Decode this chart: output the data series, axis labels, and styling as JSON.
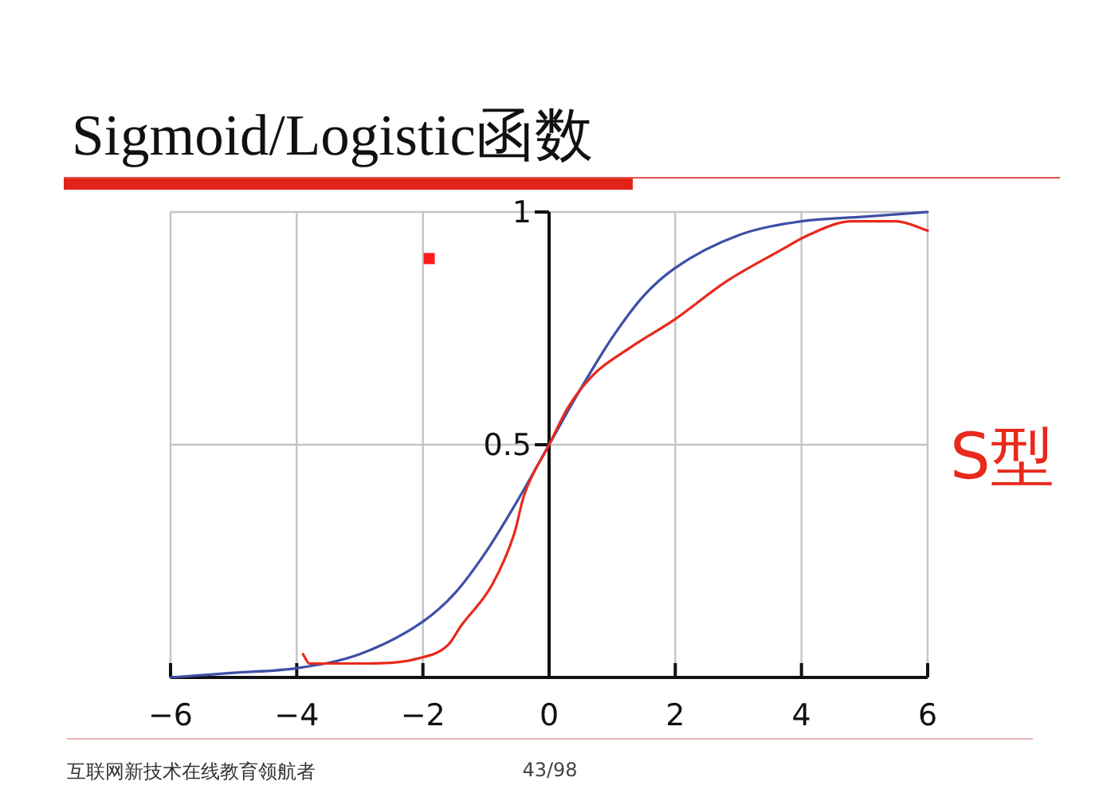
{
  "chart_data": {
    "type": "line",
    "title": "Sigmoid/Logistic函数",
    "x": [
      -6,
      -5,
      -4,
      -3,
      -2,
      -1.5,
      -1,
      -0.5,
      0,
      0.5,
      1,
      1.5,
      2,
      3,
      4,
      5,
      6
    ],
    "series": [
      {
        "color": "#3f4fa6",
        "values": [
          0,
          0.01,
          0.02,
          0.05,
          0.12,
          0.18,
          0.27,
          0.38,
          0.5,
          0.62,
          0.73,
          0.82,
          0.88,
          0.95,
          0.98,
          0.99,
          1
        ]
      },
      {
        "type": "line",
        "color": "#e8291c",
        "x": [
          -3.9,
          -3.8,
          -3.6,
          -2.9,
          -2.1,
          -1.6,
          -1.4,
          -0.9,
          -0.55,
          -0.4,
          0,
          0.3,
          0.7,
          1.3,
          2,
          2.8,
          3.7,
          4.1,
          4.8,
          5.5,
          6
        ],
        "values": [
          0.05,
          0.03,
          0.03,
          0.03,
          0.04,
          0.07,
          0.11,
          0.2,
          0.31,
          0.39,
          0.5,
          0.58,
          0.65,
          0.71,
          0.77,
          0.85,
          0.92,
          0.95,
          0.98,
          0.98,
          0.96
        ]
      },
      {
        "type": "scatter",
        "color": "#ff1a1a",
        "marker": "square",
        "x": [
          -1.9
        ],
        "values": [
          0.9
        ]
      }
    ],
    "xlim": [
      -6,
      6
    ],
    "ylim": [
      0,
      1
    ],
    "xticks": [
      {
        "value": -6,
        "label": "−6"
      },
      {
        "value": -4,
        "label": "−4"
      },
      {
        "value": -2,
        "label": "−2"
      },
      0,
      2,
      4,
      6
    ],
    "yticks": [
      0.5,
      1
    ],
    "grid": true,
    "annotations": [
      "S型",
      "互联网新技术在线教育领航者",
      "43/98"
    ]
  }
}
